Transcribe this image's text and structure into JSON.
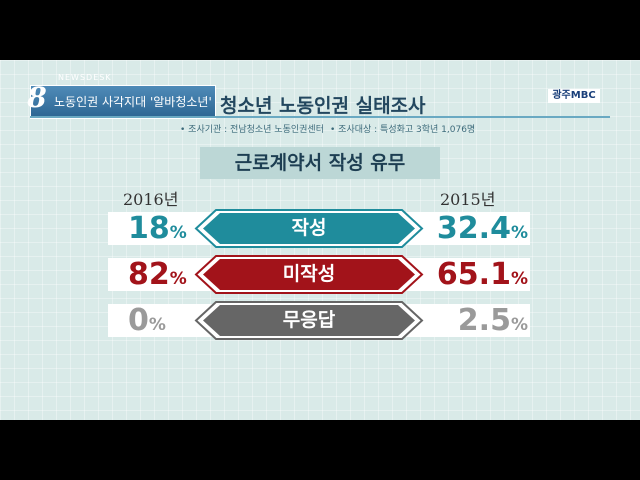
{
  "news": {
    "number": "8",
    "tag": "NEWSDESK",
    "subtitle": "노동인권 사각지대 '알바청소년'",
    "title": "청소년 노동인권 실태조사",
    "logo": "광주MBC"
  },
  "source_left": "• 조사기관 : 전남청소년 노동인권센터",
  "source_right": "• 조사대상 : 특성화고 3학년 1,076명",
  "colors": {
    "teal": "#1f8c9c",
    "red": "#a2131a",
    "gray": "#666666",
    "light_gray": "#9a9a9a"
  },
  "chart_data": {
    "type": "table",
    "title": "근로계약서 작성 유무",
    "columns": [
      "2016년",
      "2015년"
    ],
    "rows": [
      {
        "label": "작성",
        "v2016": "18",
        "v2015": "32.4",
        "unit": "%"
      },
      {
        "label": "미작성",
        "v2016": "82",
        "v2015": "65.1",
        "unit": "%"
      },
      {
        "label": "무응답",
        "v2016": "0",
        "v2015": "2.5",
        "unit": "%"
      }
    ]
  }
}
